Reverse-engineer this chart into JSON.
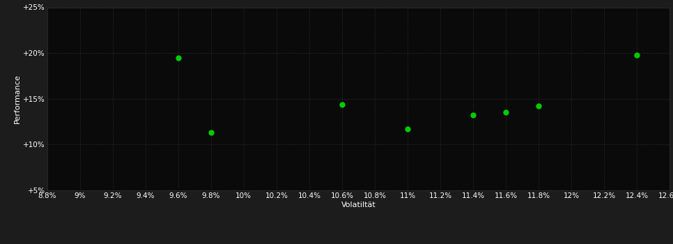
{
  "points_x": [
    9.6,
    9.8,
    10.6,
    11.0,
    11.4,
    11.6,
    11.8,
    12.4
  ],
  "points_y": [
    19.5,
    11.3,
    14.4,
    11.7,
    13.2,
    13.5,
    14.2,
    19.8
  ],
  "x_min": 8.8,
  "x_max": 12.6,
  "x_ticks": [
    8.8,
    9.0,
    9.2,
    9.4,
    9.6,
    9.8,
    10.0,
    10.2,
    10.4,
    10.6,
    10.8,
    11.0,
    11.2,
    11.4,
    11.6,
    11.8,
    12.0,
    12.2,
    12.4,
    12.6
  ],
  "y_min": 5.0,
  "y_max": 25.0,
  "y_ticks": [
    5.0,
    10.0,
    15.0,
    20.0,
    25.0
  ],
  "y_tick_labels": [
    "+5%",
    "+10%",
    "+15%",
    "+20%",
    "+25%"
  ],
  "xlabel": "Volatiltät",
  "ylabel": "Performance",
  "background_color": "#1c1c1c",
  "plot_bg_color": "#0a0a0a",
  "grid_color": "#2e2e2e",
  "point_color": "#00cc00",
  "text_color": "#ffffff",
  "tick_label_color": "#ffffff",
  "font_size_labels": 7.5,
  "font_size_axis_label": 8,
  "marker_size": 6
}
